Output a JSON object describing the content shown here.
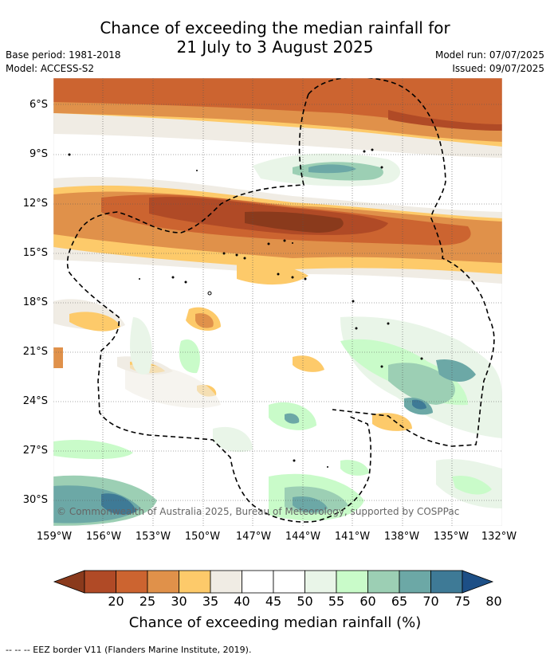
{
  "title_line1": "Chance of exceeding the median rainfall for",
  "title_line2": "21 July to 3 August 2025",
  "meta": {
    "base_period": "Base period: 1981-2018",
    "model": "Model: ACCESS-S2",
    "model_run": "Model run: 07/07/2025",
    "issued": "Issued: 09/07/2025"
  },
  "map": {
    "y_ticks": [
      "6°S",
      "9°S",
      "12°S",
      "15°S",
      "18°S",
      "21°S",
      "24°S",
      "27°S",
      "30°S"
    ],
    "x_ticks": [
      "159°W",
      "156°W",
      "153°W",
      "150°W",
      "147°W",
      "144°W",
      "141°W",
      "138°W",
      "135°W",
      "132°W"
    ],
    "copyright": "© Commonwealth of Australia 2025, Bureau of Meteorology, supported by COSPPac"
  },
  "colorbar": {
    "labels": [
      "20",
      "25",
      "30",
      "35",
      "40",
      "45",
      "50",
      "55",
      "60",
      "65",
      "70",
      "75",
      "80"
    ],
    "colors": [
      "#8a3a1c",
      "#b04a26",
      "#cc6430",
      "#e0914a",
      "#fdca6a",
      "#f0ece4",
      "#ffffff",
      "#ffffff",
      "#e9f5e8",
      "#c9fbc9",
      "#9ccfb4",
      "#6ca8a6",
      "#3e7a96",
      "#1d4f86"
    ],
    "xlabel": "Chance of exceeding median rainfall (%)"
  },
  "footer": "--  --  -- EEZ border V11 (Flanders Marine Institute, 2019)."
}
